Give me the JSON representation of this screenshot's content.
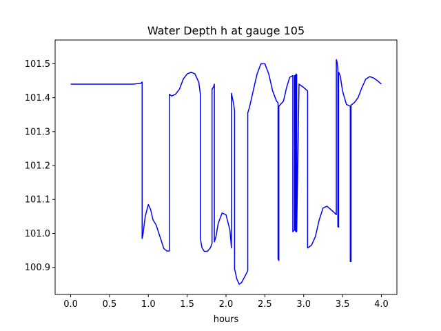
{
  "chart_data": {
    "type": "line",
    "title": "Water Depth h at gauge 105",
    "xlabel": "hours",
    "ylabel": "",
    "xlim": [
      -0.2,
      4.2
    ],
    "ylim": [
      100.82,
      101.57
    ],
    "xticks": [
      0.0,
      0.5,
      1.0,
      1.5,
      2.0,
      2.5,
      3.0,
      3.5,
      4.0
    ],
    "xtick_labels": [
      "0.0",
      "0.5",
      "1.0",
      "1.5",
      "2.0",
      "2.5",
      "3.0",
      "3.5",
      "4.0"
    ],
    "yticks": [
      100.9,
      101.0,
      101.1,
      101.2,
      101.3,
      101.4,
      101.5
    ],
    "ytick_labels": [
      "100.9",
      "101.0",
      "101.1",
      "101.2",
      "101.3",
      "101.4",
      "101.5"
    ],
    "grid": false,
    "series": [
      {
        "color": "#0000ff",
        "x": [
          0.0,
          0.2,
          0.4,
          0.6,
          0.8,
          0.9,
          0.92,
          0.92,
          0.93,
          0.96,
          1.0,
          1.03,
          1.06,
          1.1,
          1.15,
          1.2,
          1.24,
          1.27,
          1.27,
          1.3,
          1.35,
          1.4,
          1.45,
          1.5,
          1.55,
          1.6,
          1.65,
          1.67,
          1.67,
          1.69,
          1.72,
          1.76,
          1.8,
          1.82,
          1.82,
          1.84,
          1.85,
          1.85,
          1.87,
          1.9,
          1.95,
          2.0,
          2.05,
          2.07,
          2.07,
          2.1,
          2.11,
          2.11,
          2.14,
          2.17,
          2.2,
          2.24,
          2.28,
          2.28,
          2.3,
          2.35,
          2.4,
          2.45,
          2.5,
          2.55,
          2.6,
          2.65,
          2.67,
          2.67,
          2.68,
          2.68,
          2.7,
          2.74,
          2.78,
          2.82,
          2.86,
          2.86,
          2.88,
          2.88,
          2.89,
          2.89,
          2.9,
          2.9,
          2.91,
          2.91,
          2.94,
          3.0,
          3.05,
          3.05,
          3.1,
          3.15,
          3.2,
          3.25,
          3.3,
          3.35,
          3.4,
          3.42,
          3.42,
          3.43,
          3.44,
          3.44,
          3.45,
          3.45,
          3.47,
          3.5,
          3.55,
          3.6,
          3.6,
          3.61,
          3.61,
          3.62,
          3.65,
          3.7,
          3.75,
          3.8,
          3.85,
          3.9,
          3.95,
          4.0
        ],
        "y": [
          101.44,
          101.44,
          101.44,
          101.44,
          101.44,
          101.442,
          101.446,
          100.985,
          100.995,
          101.05,
          101.085,
          101.07,
          101.04,
          101.025,
          100.99,
          100.955,
          100.948,
          100.948,
          101.41,
          101.405,
          101.41,
          101.425,
          101.455,
          101.47,
          101.475,
          101.47,
          101.445,
          101.41,
          100.985,
          100.958,
          100.947,
          100.947,
          100.958,
          100.97,
          101.425,
          101.432,
          101.44,
          100.975,
          100.99,
          101.03,
          101.06,
          101.055,
          101.01,
          100.957,
          101.413,
          101.38,
          101.36,
          100.895,
          100.865,
          100.85,
          100.855,
          100.872,
          100.89,
          101.355,
          101.37,
          101.42,
          101.47,
          101.5,
          101.5,
          101.47,
          101.42,
          101.39,
          101.385,
          100.925,
          100.92,
          101.375,
          101.38,
          101.39,
          101.43,
          101.46,
          101.465,
          101.005,
          101.01,
          101.465,
          101.465,
          101.01,
          101.005,
          101.47,
          101.468,
          101.005,
          101.44,
          101.43,
          101.42,
          100.957,
          100.965,
          100.99,
          101.04,
          101.075,
          101.08,
          101.07,
          101.06,
          101.055,
          101.512,
          101.505,
          101.485,
          101.02,
          101.018,
          101.475,
          101.465,
          101.42,
          101.38,
          101.375,
          100.917,
          100.917,
          101.378,
          101.38,
          101.385,
          101.4,
          101.43,
          101.455,
          101.462,
          101.458,
          101.45,
          101.44
        ]
      }
    ]
  }
}
